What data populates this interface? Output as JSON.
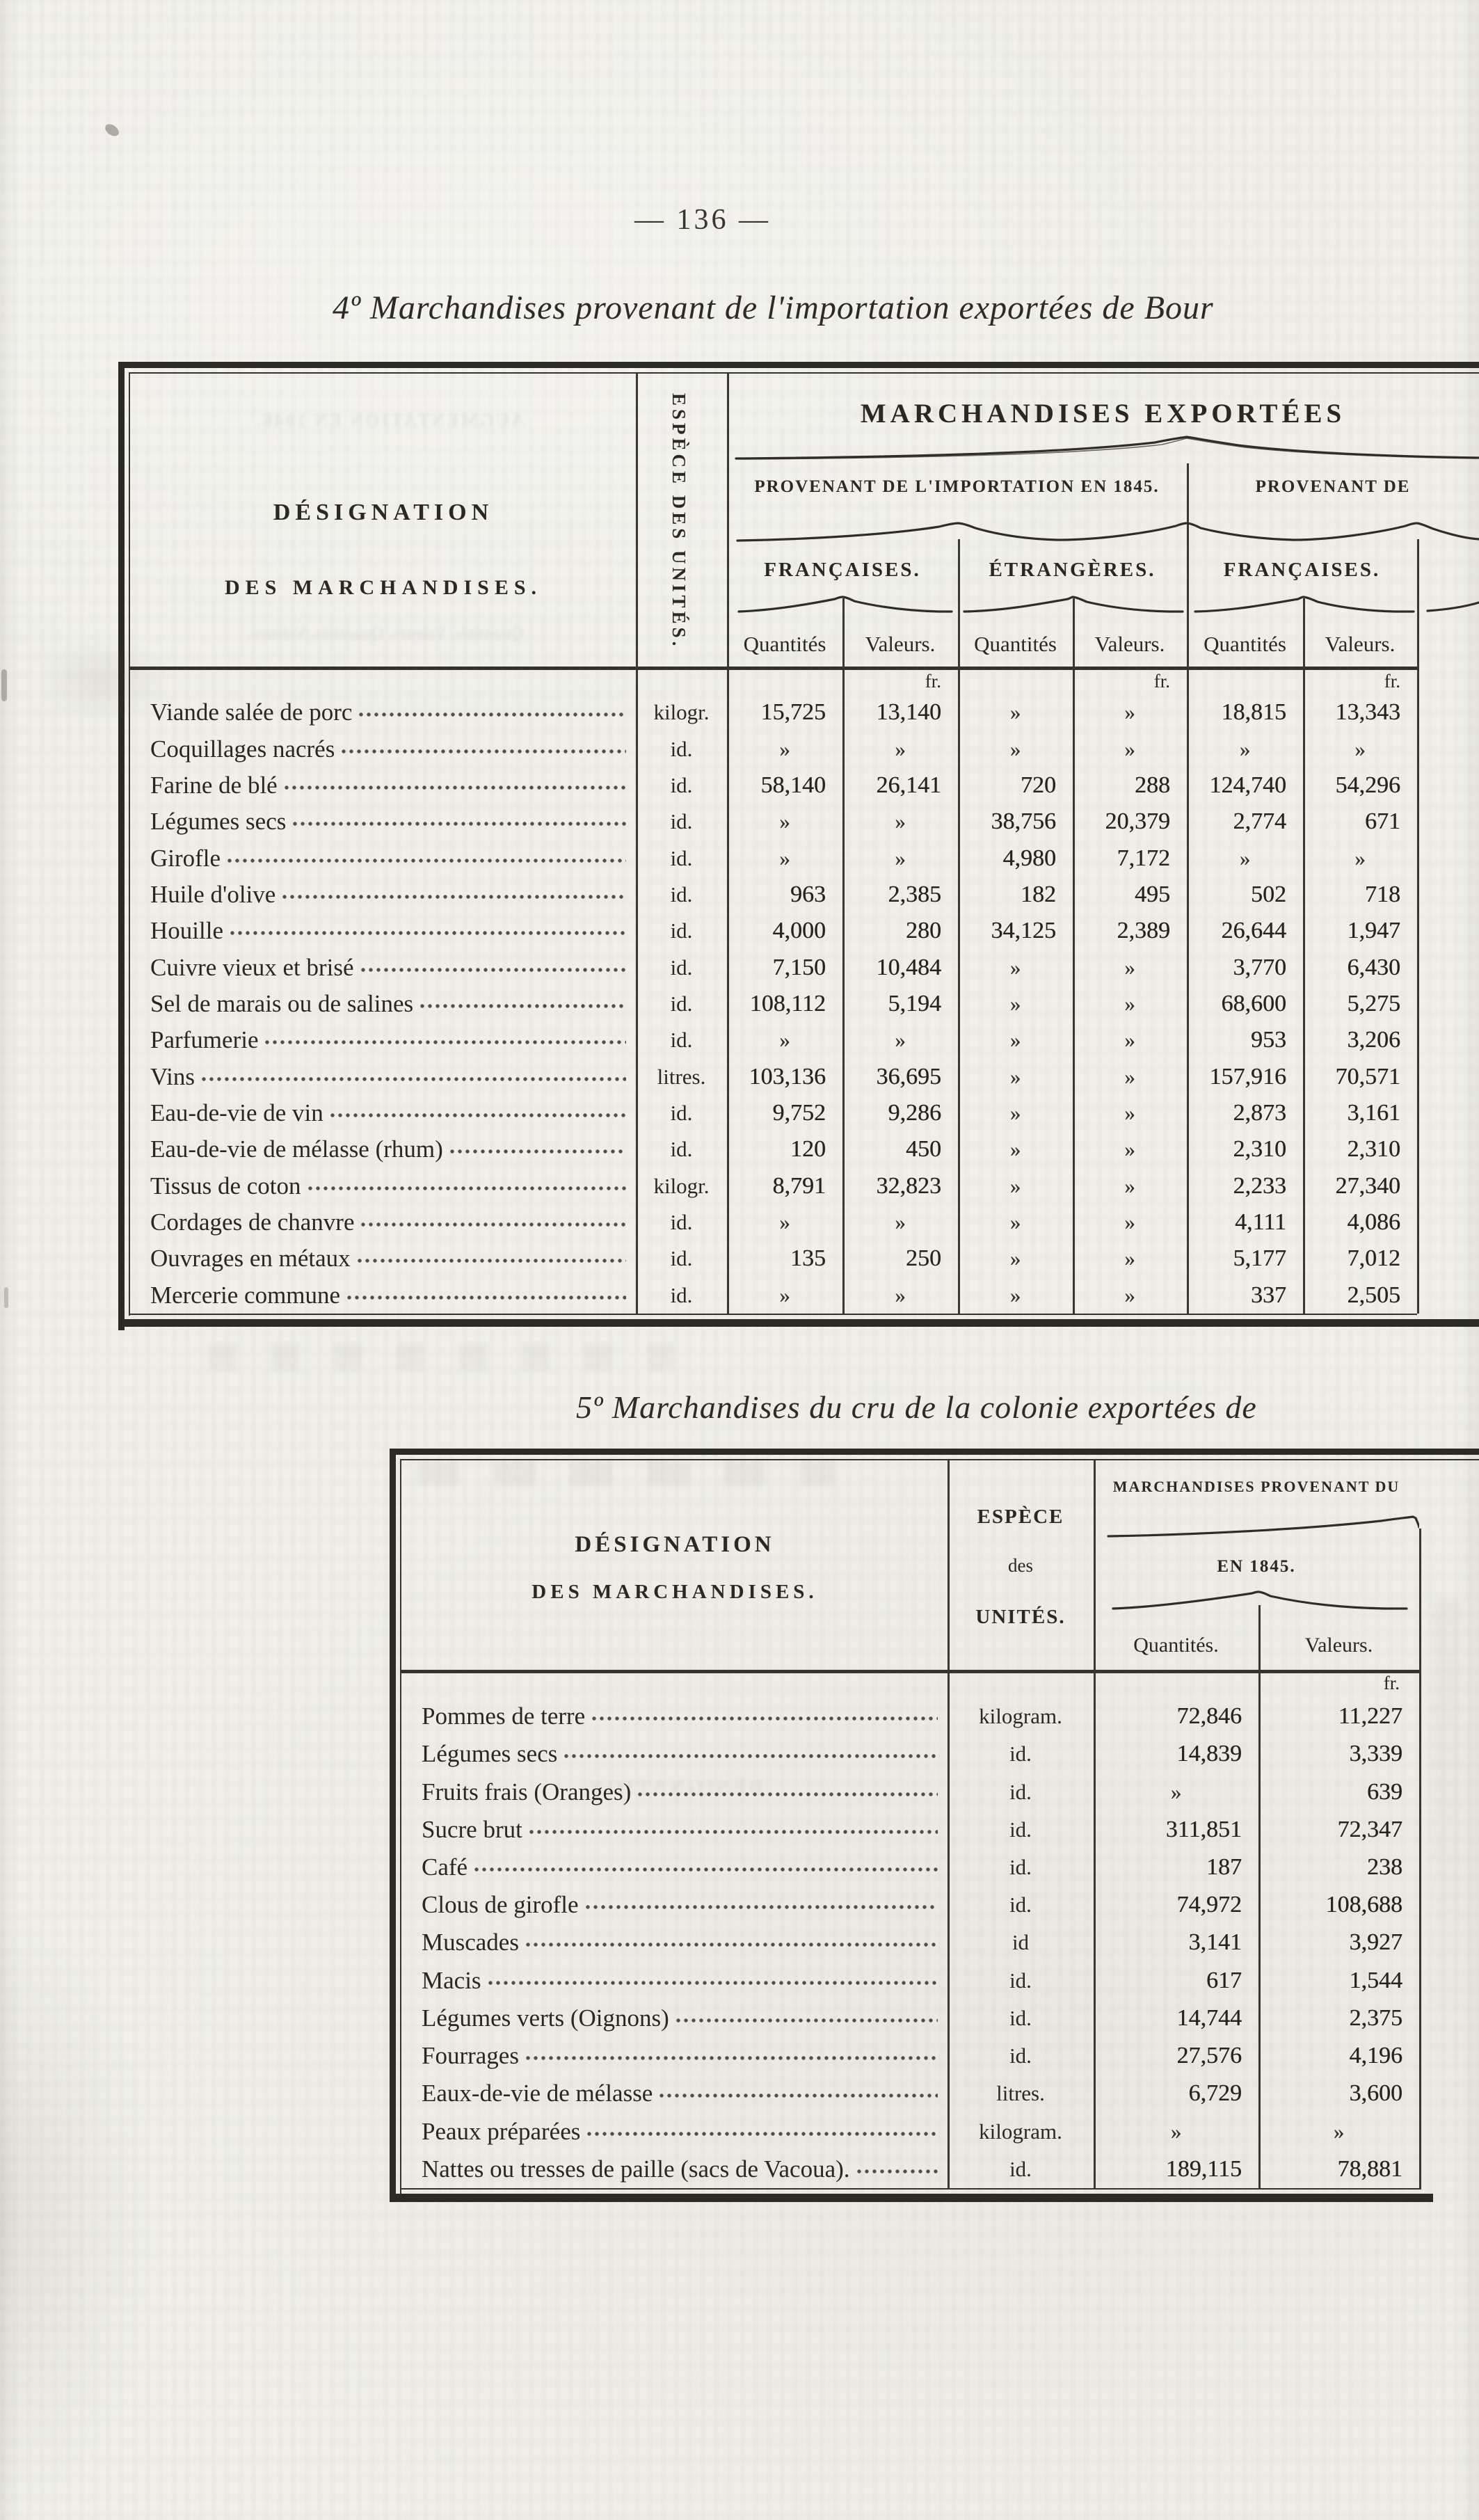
{
  "page": {
    "number_display": "— 136 —",
    "section4_title": "4º Marchandises provenant de l'importation exportées de  Bour",
    "section5_title": "5º Marchandises du cru de la colonie exportées de"
  },
  "table1": {
    "designation_header_line1": "DÉSIGNATION",
    "designation_header_line2": "DES MARCHANDISES.",
    "unit_header": "ESPÈCE DES UNITÉS.",
    "group_header": "MARCHANDISES EXPORTÉES",
    "subgroup_left": "PROVENANT DE L'IMPORTATION EN 1845.",
    "subgroup_right": "PROVENANT DE",
    "flag_headers": [
      "FRANÇAISES.",
      "ÉTRANGÈRES.",
      "FRANÇAISES."
    ],
    "qty_label": "Quantités",
    "val_label": "Valeurs.",
    "currency_label": "fr.",
    "nil_symbol": "»",
    "rows": [
      {
        "designation": "Viande salée de porc",
        "unit": "kilogr.",
        "values": [
          "15,725",
          "13,140",
          "»",
          "»",
          "18,815",
          "13,343"
        ]
      },
      {
        "designation": "Coquillages nacrés",
        "unit": "id.",
        "values": [
          "»",
          "»",
          "»",
          "»",
          "»",
          "»"
        ]
      },
      {
        "designation": "Farine de blé",
        "unit": "id.",
        "values": [
          "58,140",
          "26,141",
          "720",
          "288",
          "124,740",
          "54,296"
        ]
      },
      {
        "designation": "Légumes secs",
        "unit": "id.",
        "values": [
          "»",
          "»",
          "38,756",
          "20,379",
          "2,774",
          "671"
        ]
      },
      {
        "designation": "Girofle",
        "unit": "id.",
        "values": [
          "»",
          "»",
          "4,980",
          "7,172",
          "»",
          "»"
        ]
      },
      {
        "designation": "Huile d'olive",
        "unit": "id.",
        "values": [
          "963",
          "2,385",
          "182",
          "495",
          "502",
          "718"
        ]
      },
      {
        "designation": "Houille",
        "unit": "id.",
        "values": [
          "4,000",
          "280",
          "34,125",
          "2,389",
          "26,644",
          "1,947"
        ]
      },
      {
        "designation": "Cuivre vieux et brisé",
        "unit": "id.",
        "values": [
          "7,150",
          "10,484",
          "»",
          "»",
          "3,770",
          "6,430"
        ]
      },
      {
        "designation": "Sel de marais ou de salines",
        "unit": "id.",
        "values": [
          "108,112",
          "5,194",
          "»",
          "»",
          "68,600",
          "5,275"
        ]
      },
      {
        "designation": "Parfumerie",
        "unit": "id.",
        "values": [
          "»",
          "»",
          "»",
          "»",
          "953",
          "3,206"
        ]
      },
      {
        "designation": "Vins",
        "unit": "litres.",
        "values": [
          "103,136",
          "36,695",
          "»",
          "»",
          "157,916",
          "70,571"
        ]
      },
      {
        "designation": "Eau-de-vie de vin",
        "unit": "id.",
        "values": [
          "9,752",
          "9,286",
          "»",
          "»",
          "2,873",
          "3,161"
        ]
      },
      {
        "designation": "Eau-de-vie de mélasse (rhum)",
        "unit": "id.",
        "values": [
          "120",
          "450",
          "»",
          "»",
          "2,310",
          "2,310"
        ]
      },
      {
        "designation": "Tissus de coton",
        "unit": "kilogr.",
        "values": [
          "8,791",
          "32,823",
          "»",
          "»",
          "2,233",
          "27,340"
        ]
      },
      {
        "designation": "Cordages de chanvre",
        "unit": "id.",
        "values": [
          "»",
          "»",
          "»",
          "»",
          "4,111",
          "4,086"
        ]
      },
      {
        "designation": "Ouvrages en métaux",
        "unit": "id.",
        "values": [
          "135",
          "250",
          "»",
          "»",
          "5,177",
          "7,012"
        ]
      },
      {
        "designation": "Mercerie commune",
        "unit": "id.",
        "values": [
          "»",
          "»",
          "»",
          "»",
          "337",
          "2,505"
        ]
      }
    ]
  },
  "table2": {
    "designation_header_line1": "DÉSIGNATION",
    "designation_header_line2": "DES MARCHANDISES.",
    "unit_header_line1": "ESPÈCE",
    "unit_header_line2": "des",
    "unit_header_line3": "UNITÉS.",
    "group_header": "MARCHANDISES PROVENANT DU",
    "subgroup": "EN 1845.",
    "qty_label": "Quantités.",
    "val_label": "Valeurs.",
    "currency_label": "fr.",
    "nil_symbol": "»",
    "rows": [
      {
        "designation": "Pommes de terre",
        "unit": "kilogram.",
        "values": [
          "72,846",
          "11,227"
        ]
      },
      {
        "designation": "Légumes secs",
        "unit": "id.",
        "values": [
          "14,839",
          "3,339"
        ]
      },
      {
        "designation": "Fruits frais (Oranges)",
        "unit": "id.",
        "values": [
          "»",
          "639"
        ]
      },
      {
        "designation": "Sucre brut",
        "unit": "id.",
        "values": [
          "311,851",
          "72,347"
        ]
      },
      {
        "designation": "Café",
        "unit": "id.",
        "values": [
          "187",
          "238"
        ]
      },
      {
        "designation": "Clous de girofle",
        "unit": "id.",
        "values": [
          "74,972",
          "108,688"
        ]
      },
      {
        "designation": "Muscades",
        "unit": "id",
        "values": [
          "3,141",
          "3,927"
        ]
      },
      {
        "designation": "Macis",
        "unit": "id.",
        "values": [
          "617",
          "1,544"
        ]
      },
      {
        "designation": "Légumes verts (Oignons)",
        "unit": "id.",
        "values": [
          "14,744",
          "2,375"
        ]
      },
      {
        "designation": "Fourrages",
        "unit": "id.",
        "values": [
          "27,576",
          "4,196"
        ]
      },
      {
        "designation": "Eaux-de-vie de mélasse",
        "unit": "litres.",
        "values": [
          "6,729",
          "3,600"
        ]
      },
      {
        "designation": "Peaux préparées",
        "unit": "kilogram.",
        "values": [
          "»",
          "»"
        ]
      },
      {
        "designation": "Nattes ou tresses de paille (sacs de Vacoua).",
        "unit": "id.",
        "values": [
          "189,115",
          "78,881"
        ]
      }
    ]
  },
  "bleedthrough": {
    "ghost_augmentation": "AUGMENTATION EN 1846.",
    "ghost_diminution": "DIMINUTION EN 1846.",
    "ghost_qty_val": "Quantités.   Valeurs.   Quantités.   Valeurs.",
    "ghost_designation": "DÉSIGNATION"
  }
}
